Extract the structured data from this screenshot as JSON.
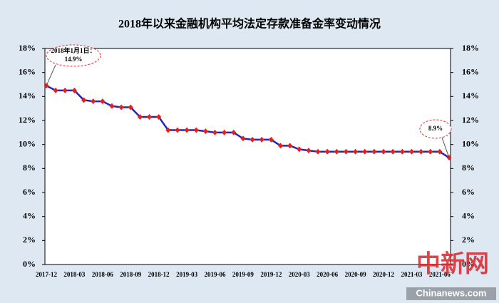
{
  "chart_data": {
    "type": "line",
    "title": "2018年以来金融机构平均法定存款准备金率变动情况",
    "categories": [
      "2017-12",
      null,
      null,
      "2018-03",
      null,
      null,
      "2018-06",
      null,
      null,
      "2018-09",
      null,
      null,
      "2018-12",
      null,
      null,
      "2019-03",
      null,
      null,
      "2019-06",
      null,
      null,
      "2019-09",
      null,
      null,
      "2019-12",
      null,
      null,
      "2020-03",
      null,
      null,
      "2020-06",
      null,
      null,
      "2020-09",
      null,
      null,
      "2020-12",
      null,
      null,
      "2021-03",
      null,
      null,
      "2021-06",
      null
    ],
    "series": [
      {
        "color": "#2b20b8",
        "marker_color": "#e3211c",
        "values": [
          14.9,
          14.5,
          14.5,
          14.5,
          13.7,
          13.6,
          13.6,
          13.2,
          13.1,
          13.1,
          12.3,
          12.3,
          12.3,
          11.2,
          11.2,
          11.2,
          11.2,
          11.1,
          11.0,
          11.0,
          11.0,
          10.5,
          10.4,
          10.4,
          10.4,
          9.9,
          9.9,
          9.6,
          9.5,
          9.4,
          9.4,
          9.4,
          9.4,
          9.4,
          9.4,
          9.4,
          9.4,
          9.4,
          9.4,
          9.4,
          9.4,
          9.4,
          9.4,
          8.9
        ]
      }
    ],
    "ylim": [
      0,
      18
    ],
    "yticks": [
      {
        "value": 0,
        "label": "0%"
      },
      {
        "value": 2,
        "label": "2%"
      },
      {
        "value": 4,
        "label": "4%"
      },
      {
        "value": 6,
        "label": "6%"
      },
      {
        "value": 8,
        "label": "8%"
      },
      {
        "value": 10,
        "label": "10%"
      },
      {
        "value": 12,
        "label": "12%"
      },
      {
        "value": 14,
        "label": "14%"
      },
      {
        "value": 16,
        "label": "16%"
      },
      {
        "value": 18,
        "label": "18%"
      }
    ],
    "y2lim": [
      0,
      18
    ],
    "y2ticks": [
      {
        "value": 0,
        "label": "0%"
      },
      {
        "value": 2,
        "label": "2%"
      },
      {
        "value": 4,
        "label": "4%"
      },
      {
        "value": 6,
        "label": "6%"
      },
      {
        "value": 8,
        "label": "8%"
      },
      {
        "value": 10,
        "label": "10%"
      },
      {
        "value": 12,
        "label": "12%"
      },
      {
        "value": 14,
        "label": "14%"
      },
      {
        "value": 16,
        "label": "16%"
      },
      {
        "value": 18,
        "label": "18%"
      }
    ],
    "annotations": [
      {
        "lines": [
          "2018年1月1日：",
          "14.9%"
        ]
      },
      {
        "lines": [
          "8.9%"
        ]
      }
    ],
    "watermark": [
      "中新网",
      "Chinanews.com"
    ]
  }
}
